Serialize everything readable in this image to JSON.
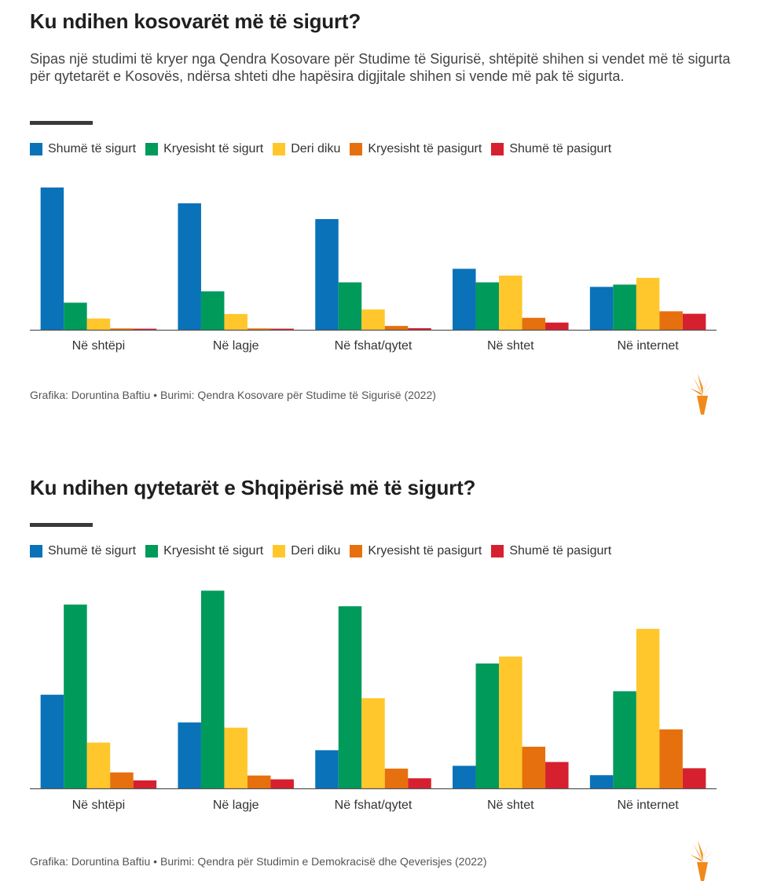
{
  "colors": {
    "series": [
      "#0a72b8",
      "#009a5b",
      "#ffc72c",
      "#e6700d",
      "#d6202f"
    ],
    "axis": "#555555",
    "tick": "#333333"
  },
  "chart_data": [
    {
      "type": "bar",
      "title": "Ku ndihen kosovarët më të sigurt?",
      "subtitle": "Sipas një studimi të kryer nga Qendra Kosovare për Studime të Sigurisë, shtëpitë shihen si vendet më të sigurta për qytetarët e Kosovës, ndërsa shteti dhe hapësira digjitale shihen si vende më pak të sigurta.",
      "categories": [
        "Në shtëpi",
        "Në lagje",
        "Në fshat/qytet",
        "Në shtet",
        "Në internet"
      ],
      "series": [
        {
          "name": "Shumë të sigurt",
          "values": [
            63,
            56,
            49,
            27,
            19
          ]
        },
        {
          "name": "Kryesisht të sigurt",
          "values": [
            12,
            17,
            21,
            21,
            20
          ]
        },
        {
          "name": "Deri diku",
          "values": [
            5,
            7,
            9,
            24,
            23
          ]
        },
        {
          "name": "Kryesisht të pasigurt",
          "values": [
            0.6,
            0.6,
            1.7,
            5.3,
            8.2
          ]
        },
        {
          "name": "Shumë të pasigurt",
          "values": [
            0.5,
            0.5,
            0.7,
            3.2,
            7.1
          ]
        }
      ],
      "ylim": [
        0,
        65
      ],
      "xlabel": "",
      "ylabel": "",
      "legend": "top-left",
      "grid": false,
      "source": "Grafika: Doruntina Baftiu • Burimi: Qendra Kosovare për Studime të Sigurisë (2022)"
    },
    {
      "type": "bar",
      "title": "Ku ndihen qytetarët e Shqipërisë më të sigurt?",
      "categories": [
        "Në shtëpi",
        "Në lagje",
        "Në fshat/qytet",
        "Në shtet",
        "Në internet"
      ],
      "series": [
        {
          "name": "Shumë të sigurt",
          "values": [
            27,
            19,
            11,
            6.5,
            3.8
          ]
        },
        {
          "name": "Kryesisht të sigurt",
          "values": [
            53,
            57,
            52.5,
            36,
            28
          ]
        },
        {
          "name": "Deri diku",
          "values": [
            13.2,
            17.5,
            26,
            38,
            46
          ]
        },
        {
          "name": "Kryesisht të pasigurt",
          "values": [
            4.6,
            3.7,
            5.7,
            12,
            17
          ]
        },
        {
          "name": "Shumë të pasigurt",
          "values": [
            2.3,
            2.6,
            2.9,
            7.6,
            5.8
          ]
        }
      ],
      "ylim": [
        0,
        60
      ],
      "xlabel": "",
      "ylabel": "",
      "legend": "top-left",
      "grid": false,
      "source": "Grafika: Doruntina Baftiu • Burimi: Qendra për Studimin e Demokracisë dhe Qeverisjes (2022)"
    }
  ]
}
